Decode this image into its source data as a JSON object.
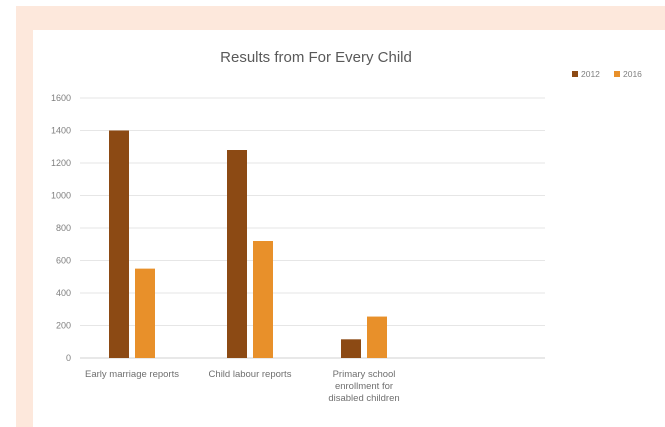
{
  "chart_data": {
    "type": "bar",
    "title": "Results from For Every Child",
    "categories": [
      [
        "Early marriage reports"
      ],
      [
        "Child labour reports"
      ],
      [
        "Primary school",
        "enrollment for",
        "disabled children"
      ]
    ],
    "series": [
      {
        "name": "2012",
        "color": "#8c4a14",
        "values": [
          1400,
          1280,
          115
        ]
      },
      {
        "name": "2016",
        "color": "#e8902a",
        "values": [
          550,
          720,
          255
        ]
      }
    ],
    "ylim": [
      0,
      1600
    ],
    "yticks": [
      0,
      200,
      400,
      600,
      800,
      1000,
      1200,
      1400,
      1600
    ],
    "grid": true,
    "legend_position": "top-right",
    "xlabel": "",
    "ylabel": ""
  }
}
